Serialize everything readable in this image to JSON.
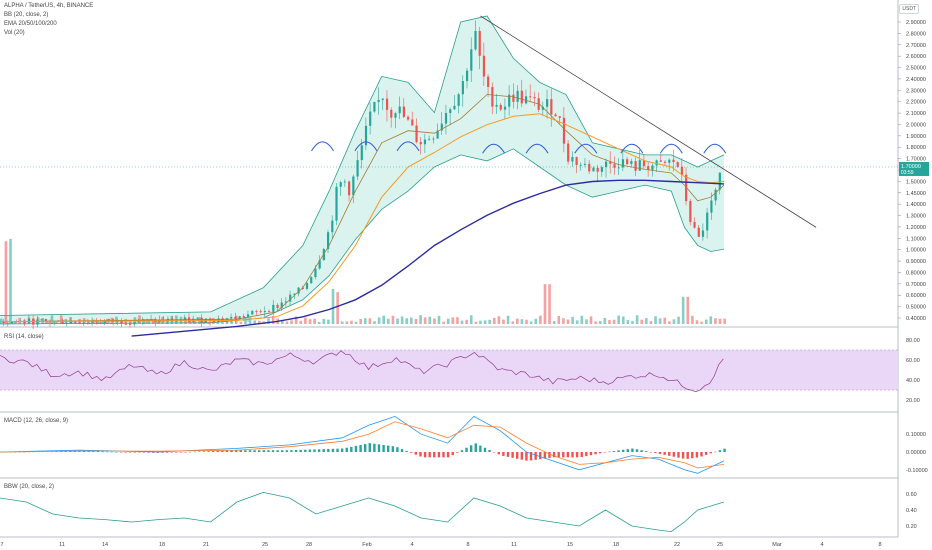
{
  "chart_data": {
    "type": "candlestick",
    "title": "ALPHA / TetherUS, 4h, BINANCE",
    "quote_currency": "USDT",
    "indicators": [
      "BB (20, close, 2)",
      "EMA 20/50/100/200",
      "Vol (20)"
    ],
    "price_axis": {
      "ticks": [
        "2.90000",
        "2.80000",
        "2.70000",
        "2.60000",
        "2.50000",
        "2.40000",
        "2.30000",
        "2.20000",
        "2.10000",
        "2.00000",
        "1.90000",
        "1.80000",
        "1.70000",
        "1.60000",
        "1.50000",
        "1.45000",
        "1.40000",
        "1.30000",
        "1.20000",
        "1.10000",
        "1.00000",
        "0.90000",
        "0.80000",
        "0.70000",
        "0.60000",
        "0.50000",
        "0.40000"
      ],
      "last_price_label": "1.70000",
      "countdown_label": "03:59"
    },
    "x_axis_labels": [
      "7",
      "11",
      "14",
      "18",
      "21",
      "25",
      "28",
      "Feb",
      "4",
      "8",
      "11",
      "15",
      "18",
      "22",
      "25",
      "Mar",
      "4",
      "8"
    ],
    "price_path": [
      [
        0,
        0.42
      ],
      [
        8,
        0.42
      ],
      [
        14,
        0.43
      ],
      [
        18,
        0.45
      ],
      [
        21,
        0.55
      ],
      [
        23,
        0.7
      ],
      [
        24,
        0.9
      ],
      [
        25,
        1.2
      ],
      [
        25.5,
        1.5
      ],
      [
        26,
        1.6
      ],
      [
        26.5,
        1.5
      ],
      [
        27,
        1.7
      ],
      [
        28,
        2.1
      ],
      [
        29,
        2.3
      ],
      [
        29.5,
        2.15
      ],
      [
        30,
        2.2
      ],
      [
        31,
        2.05
      ],
      [
        31.5,
        1.95
      ],
      [
        32,
        1.9
      ],
      [
        33,
        2.0
      ],
      [
        34,
        2.2
      ],
      [
        35,
        2.35
      ],
      [
        35.5,
        2.6
      ],
      [
        36,
        2.8
      ],
      [
        36.5,
        2.5
      ],
      [
        37,
        2.3
      ],
      [
        38,
        2.2
      ],
      [
        39,
        2.3
      ],
      [
        40,
        2.25
      ],
      [
        41,
        2.2
      ],
      [
        42,
        2.2
      ],
      [
        42.5,
        2.05
      ],
      [
        43,
        1.8
      ],
      [
        44,
        1.72
      ],
      [
        45,
        1.68
      ],
      [
        46,
        1.72
      ],
      [
        47,
        1.75
      ],
      [
        48,
        1.7
      ],
      [
        49,
        1.72
      ],
      [
        50,
        1.7
      ],
      [
        51,
        1.75
      ],
      [
        51.5,
        1.7
      ],
      [
        52,
        1.45
      ],
      [
        52.5,
        1.2
      ],
      [
        53,
        1.1
      ],
      [
        53.5,
        1.25
      ],
      [
        54,
        1.4
      ],
      [
        54.5,
        1.55
      ],
      [
        54.8,
        1.7
      ]
    ],
    "bb_upper": [
      [
        0,
        0.47
      ],
      [
        16,
        0.5
      ],
      [
        20,
        0.7
      ],
      [
        23,
        1.05
      ],
      [
        25,
        1.5
      ],
      [
        27,
        2.0
      ],
      [
        29,
        2.45
      ],
      [
        31,
        2.4
      ],
      [
        33,
        2.15
      ],
      [
        35,
        2.9
      ],
      [
        37,
        2.95
      ],
      [
        39,
        2.6
      ],
      [
        41,
        2.4
      ],
      [
        43,
        2.3
      ],
      [
        45,
        1.9
      ],
      [
        47,
        1.85
      ],
      [
        49,
        1.8
      ],
      [
        51,
        1.8
      ],
      [
        52,
        1.75
      ],
      [
        53,
        1.7
      ],
      [
        54,
        1.75
      ],
      [
        55,
        1.8
      ]
    ],
    "bb_lower": [
      [
        0,
        0.4
      ],
      [
        16,
        0.41
      ],
      [
        20,
        0.45
      ],
      [
        23,
        0.6
      ],
      [
        25,
        0.8
      ],
      [
        27,
        1.1
      ],
      [
        29,
        1.35
      ],
      [
        31,
        1.5
      ],
      [
        33,
        1.7
      ],
      [
        35,
        1.8
      ],
      [
        37,
        1.75
      ],
      [
        39,
        1.85
      ],
      [
        41,
        1.7
      ],
      [
        43,
        1.55
      ],
      [
        45,
        1.45
      ],
      [
        47,
        1.5
      ],
      [
        49,
        1.55
      ],
      [
        51,
        1.5
      ],
      [
        52,
        1.2
      ],
      [
        53,
        1.05
      ],
      [
        54,
        1.0
      ],
      [
        55,
        1.02
      ]
    ],
    "ema_fast": [
      [
        0,
        0.42
      ],
      [
        18,
        0.44
      ],
      [
        21,
        0.5
      ],
      [
        23,
        0.7
      ],
      [
        25,
        1.05
      ],
      [
        27,
        1.5
      ],
      [
        29,
        1.9
      ],
      [
        31,
        2.0
      ],
      [
        33,
        1.98
      ],
      [
        35,
        2.1
      ],
      [
        37,
        2.3
      ],
      [
        39,
        2.28
      ],
      [
        41,
        2.22
      ],
      [
        43,
        2.0
      ],
      [
        45,
        1.8
      ],
      [
        47,
        1.72
      ],
      [
        49,
        1.68
      ],
      [
        51,
        1.65
      ],
      [
        52,
        1.55
      ],
      [
        53,
        1.42
      ],
      [
        54,
        1.45
      ],
      [
        55,
        1.55
      ]
    ],
    "ema_mid": [
      [
        0,
        0.42
      ],
      [
        18,
        0.43
      ],
      [
        21,
        0.46
      ],
      [
        23,
        0.55
      ],
      [
        25,
        0.75
      ],
      [
        27,
        1.05
      ],
      [
        29,
        1.45
      ],
      [
        31,
        1.7
      ],
      [
        33,
        1.82
      ],
      [
        35,
        1.95
      ],
      [
        37,
        2.05
      ],
      [
        39,
        2.12
      ],
      [
        41,
        2.14
      ],
      [
        43,
        2.05
      ],
      [
        45,
        1.95
      ],
      [
        47,
        1.85
      ],
      [
        49,
        1.75
      ],
      [
        51,
        1.7
      ],
      [
        52,
        1.62
      ],
      [
        53,
        1.58
      ],
      [
        54,
        1.57
      ],
      [
        55,
        1.58
      ]
    ],
    "ema_slow": [
      [
        10,
        0.3
      ],
      [
        18,
        0.38
      ],
      [
        21,
        0.42
      ],
      [
        23,
        0.46
      ],
      [
        25,
        0.52
      ],
      [
        27,
        0.6
      ],
      [
        29,
        0.72
      ],
      [
        31,
        0.88
      ],
      [
        33,
        1.05
      ],
      [
        35,
        1.18
      ],
      [
        37,
        1.3
      ],
      [
        39,
        1.4
      ],
      [
        41,
        1.48
      ],
      [
        43,
        1.55
      ],
      [
        45,
        1.58
      ],
      [
        47,
        1.59
      ],
      [
        49,
        1.59
      ],
      [
        51,
        1.58
      ],
      [
        53,
        1.57
      ],
      [
        55,
        1.56
      ]
    ],
    "trendline": [
      [
        36.5,
        2.95
      ],
      [
        62,
        1.2
      ]
    ],
    "arcs": [
      [
        24.5,
        1.9
      ],
      [
        27.8,
        1.9
      ],
      [
        31,
        1.9
      ],
      [
        37.5,
        1.88
      ],
      [
        40.8,
        1.88
      ],
      [
        44.5,
        1.88
      ],
      [
        48,
        1.88
      ],
      [
        51,
        1.88
      ],
      [
        54.3,
        1.88
      ]
    ],
    "rsi": {
      "label": "RSI (14, close)",
      "ticks": [
        "80.00",
        "60.00",
        "40.00",
        "20.00"
      ],
      "levels": [
        70,
        30
      ],
      "values": [
        [
          0,
          62
        ],
        [
          2,
          58
        ],
        [
          4,
          45
        ],
        [
          6,
          48
        ],
        [
          8,
          40
        ],
        [
          10,
          55
        ],
        [
          12,
          45
        ],
        [
          14,
          58
        ],
        [
          16,
          48
        ],
        [
          18,
          60
        ],
        [
          20,
          56
        ],
        [
          22,
          65
        ],
        [
          24,
          58
        ],
        [
          26,
          70
        ],
        [
          28,
          52
        ],
        [
          30,
          62
        ],
        [
          32,
          48
        ],
        [
          34,
          56
        ],
        [
          36,
          68
        ],
        [
          38,
          50
        ],
        [
          40,
          46
        ],
        [
          42,
          38
        ],
        [
          44,
          42
        ],
        [
          46,
          38
        ],
        [
          48,
          44
        ],
        [
          50,
          46
        ],
        [
          52,
          34
        ],
        [
          53,
          30
        ],
        [
          54,
          40
        ],
        [
          55,
          62
        ]
      ]
    },
    "macd": {
      "label": "MACD (12, 26, close, 9)",
      "ticks": [
        "0.10000",
        "0.00000",
        "-0.10000"
      ],
      "macd_line": [
        [
          0,
          0.0
        ],
        [
          6,
          0.01
        ],
        [
          12,
          0.0
        ],
        [
          18,
          0.02
        ],
        [
          22,
          0.04
        ],
        [
          26,
          0.08
        ],
        [
          28,
          0.15
        ],
        [
          30,
          0.2
        ],
        [
          32,
          0.1
        ],
        [
          34,
          0.05
        ],
        [
          36,
          0.2
        ],
        [
          38,
          0.12
        ],
        [
          40,
          0.0
        ],
        [
          42,
          -0.05
        ],
        [
          44,
          -0.1
        ],
        [
          46,
          -0.06
        ],
        [
          48,
          -0.02
        ],
        [
          50,
          -0.04
        ],
        [
          52,
          -0.1
        ],
        [
          53,
          -0.12
        ],
        [
          55,
          -0.05
        ]
      ],
      "signal_line": [
        [
          0,
          0.0
        ],
        [
          6,
          0.005
        ],
        [
          12,
          0.005
        ],
        [
          18,
          0.01
        ],
        [
          22,
          0.03
        ],
        [
          26,
          0.06
        ],
        [
          28,
          0.1
        ],
        [
          30,
          0.17
        ],
        [
          32,
          0.13
        ],
        [
          34,
          0.08
        ],
        [
          36,
          0.15
        ],
        [
          38,
          0.14
        ],
        [
          40,
          0.05
        ],
        [
          42,
          -0.02
        ],
        [
          44,
          -0.07
        ],
        [
          46,
          -0.06
        ],
        [
          48,
          -0.04
        ],
        [
          50,
          -0.03
        ],
        [
          52,
          -0.06
        ],
        [
          53,
          -0.09
        ],
        [
          55,
          -0.07
        ]
      ]
    },
    "bbw": {
      "label": "BBW (20, close, 2)",
      "ticks": [
        "0.60",
        "0.40",
        "0.20"
      ],
      "values": [
        [
          0,
          0.55
        ],
        [
          2,
          0.5
        ],
        [
          4,
          0.35
        ],
        [
          6,
          0.3
        ],
        [
          8,
          0.28
        ],
        [
          10,
          0.25
        ],
        [
          12,
          0.28
        ],
        [
          14,
          0.3
        ],
        [
          16,
          0.25
        ],
        [
          18,
          0.5
        ],
        [
          20,
          0.62
        ],
        [
          22,
          0.55
        ],
        [
          24,
          0.35
        ],
        [
          26,
          0.45
        ],
        [
          28,
          0.55
        ],
        [
          30,
          0.45
        ],
        [
          32,
          0.3
        ],
        [
          34,
          0.25
        ],
        [
          36,
          0.55
        ],
        [
          38,
          0.45
        ],
        [
          40,
          0.3
        ],
        [
          42,
          0.25
        ],
        [
          44,
          0.2
        ],
        [
          46,
          0.4
        ],
        [
          48,
          0.2
        ],
        [
          50,
          0.15
        ],
        [
          51,
          0.13
        ],
        [
          52,
          0.25
        ],
        [
          53,
          0.4
        ],
        [
          55,
          0.5
        ]
      ]
    }
  },
  "colors": {
    "up": "#26a69a",
    "down": "#ef5350",
    "bb_fill": "#d2f0ea",
    "bb_line": "#2a9d8f",
    "ema_fast": "#a07c3a",
    "ema_mid": "#f59a23",
    "ema_slow": "#2c2ca0",
    "trend": "#444444",
    "arc": "#2a5bd6",
    "rsi_band": "#ead7f7",
    "rsi_line": "#8e3d8e",
    "macd": "#2196f3",
    "signal": "#ff7f27",
    "bbw": "#2a9d8f",
    "label_bg": "#26a69a"
  }
}
